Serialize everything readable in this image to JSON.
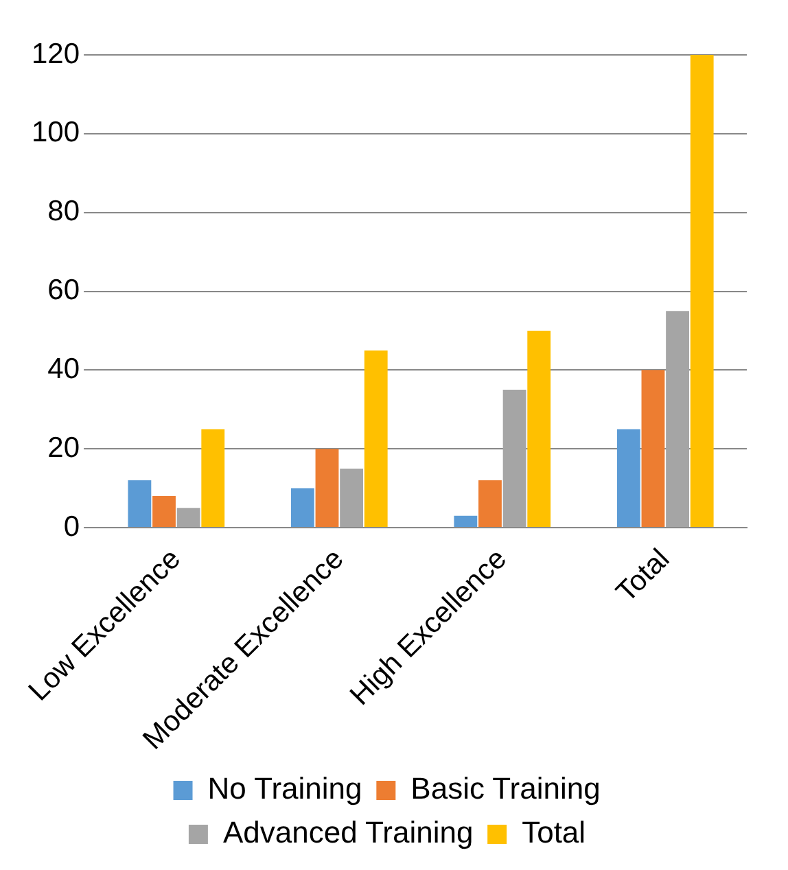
{
  "chart_data": {
    "type": "bar",
    "categories": [
      "Low Excellence",
      "Moderate Excellence",
      "High Excellence",
      "Total"
    ],
    "series": [
      {
        "name": "No Training",
        "color": "#5b9bd5",
        "values": [
          12,
          10,
          3,
          25
        ]
      },
      {
        "name": "Basic Training",
        "color": "#ed7d31",
        "values": [
          8,
          20,
          12,
          40
        ]
      },
      {
        "name": "Advanced Training",
        "color": "#a5a5a5",
        "values": [
          5,
          15,
          35,
          55
        ]
      },
      {
        "name": "Total",
        "color": "#ffc000",
        "values": [
          25,
          45,
          50,
          120
        ]
      }
    ],
    "ylim": [
      0,
      120
    ],
    "yticks": [
      0,
      20,
      40,
      60,
      80,
      100,
      120
    ],
    "grid": "y",
    "legend": "bottom"
  }
}
